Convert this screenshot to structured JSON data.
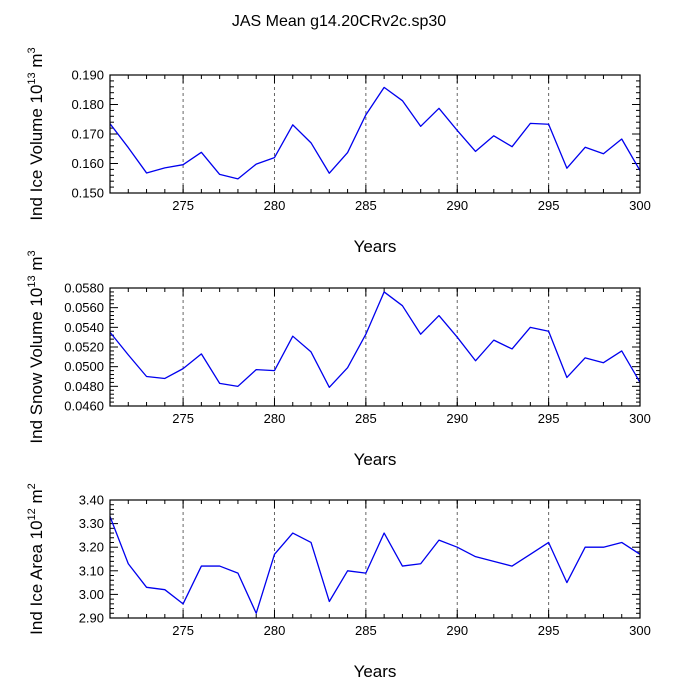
{
  "figure_title": "JAS Mean g14.20CRv2c.sp30",
  "colors": {
    "line": "#0000ee",
    "frame": "#000000",
    "grid": "#666666"
  },
  "chart_data": [
    {
      "type": "line",
      "title": "JAS Mean g14.20CRv2c.sp30",
      "ylabel_main": "Ind Ice Volume 10",
      "ylabel_exp": "13",
      "ylabel_unit": "m",
      "ylabel_unit_exp": "3",
      "xlabel": "Years",
      "xlim": [
        271,
        300
      ],
      "ylim": [
        0.15,
        0.19
      ],
      "xticks": [
        275,
        280,
        285,
        290,
        295,
        300
      ],
      "xtick_labels": [
        "275",
        "280",
        "285",
        "290",
        "295",
        "300"
      ],
      "yticks": [
        0.15,
        0.16,
        0.17,
        0.18,
        0.19
      ],
      "ytick_labels": [
        "0.150",
        "0.160",
        "0.170",
        "0.180",
        "0.190"
      ],
      "grid_x": [
        275,
        280,
        285,
        290,
        295
      ],
      "x": [
        271,
        272,
        273,
        274,
        275,
        276,
        277,
        278,
        279,
        280,
        281,
        282,
        283,
        284,
        285,
        286,
        287,
        288,
        289,
        290,
        291,
        292,
        293,
        294,
        295,
        296,
        297,
        298,
        299,
        300
      ],
      "series": [
        {
          "name": "Ind Ice Volume",
          "values": [
            0.1735,
            0.1654,
            0.1568,
            0.1585,
            0.1596,
            0.1638,
            0.1563,
            0.1548,
            0.1598,
            0.162,
            0.1731,
            0.167,
            0.1567,
            0.1637,
            0.1765,
            0.1858,
            0.1813,
            0.1726,
            0.1787,
            0.1712,
            0.1641,
            0.1694,
            0.1657,
            0.1736,
            0.1733,
            0.1584,
            0.1655,
            0.1633,
            0.1683,
            0.1576
          ]
        }
      ]
    },
    {
      "type": "line",
      "ylabel_main": "Ind Snow Volume 10",
      "ylabel_exp": "13",
      "ylabel_unit": "m",
      "ylabel_unit_exp": "3",
      "xlabel": "Years",
      "xlim": [
        271,
        300
      ],
      "ylim": [
        0.046,
        0.058
      ],
      "xticks": [
        275,
        280,
        285,
        290,
        295,
        300
      ],
      "xtick_labels": [
        "275",
        "280",
        "285",
        "290",
        "295",
        "300"
      ],
      "yticks": [
        0.046,
        0.048,
        0.05,
        0.052,
        0.054,
        0.056,
        0.058
      ],
      "ytick_labels": [
        "0.0460",
        "0.0480",
        "0.0500",
        "0.0520",
        "0.0540",
        "0.0560",
        "0.0580"
      ],
      "grid_x": [
        275,
        280,
        285,
        290,
        295
      ],
      "x": [
        271,
        272,
        273,
        274,
        275,
        276,
        277,
        278,
        279,
        280,
        281,
        282,
        283,
        284,
        285,
        286,
        287,
        288,
        289,
        290,
        291,
        292,
        293,
        294,
        295,
        296,
        297,
        298,
        299,
        300
      ],
      "series": [
        {
          "name": "Ind Snow Volume",
          "values": [
            0.0535,
            0.0512,
            0.049,
            0.0488,
            0.0498,
            0.0513,
            0.0483,
            0.048,
            0.0497,
            0.0496,
            0.0531,
            0.0515,
            0.0479,
            0.0499,
            0.0533,
            0.0576,
            0.0562,
            0.0533,
            0.0552,
            0.053,
            0.0506,
            0.0527,
            0.0518,
            0.054,
            0.0536,
            0.0489,
            0.0509,
            0.0504,
            0.0516,
            0.0484
          ]
        }
      ]
    },
    {
      "type": "line",
      "ylabel_main": "Ind Ice Area 10",
      "ylabel_exp": "12",
      "ylabel_unit": "m",
      "ylabel_unit_exp": "2",
      "xlabel": "Years",
      "xlim": [
        271,
        300
      ],
      "ylim": [
        2.9,
        3.4
      ],
      "xticks": [
        275,
        280,
        285,
        290,
        295,
        300
      ],
      "xtick_labels": [
        "275",
        "280",
        "285",
        "290",
        "295",
        "300"
      ],
      "yticks": [
        2.9,
        3.0,
        3.1,
        3.2,
        3.3,
        3.4
      ],
      "ytick_labels": [
        "2.90",
        "3.00",
        "3.10",
        "3.20",
        "3.30",
        "3.40"
      ],
      "grid_x": [
        275,
        280,
        285,
        290,
        295
      ],
      "x": [
        271,
        272,
        273,
        274,
        275,
        276,
        277,
        278,
        279,
        280,
        281,
        282,
        283,
        284,
        285,
        286,
        287,
        288,
        289,
        290,
        291,
        292,
        293,
        294,
        295,
        296,
        297,
        298,
        299,
        300
      ],
      "series": [
        {
          "name": "Ind Ice Area",
          "values": [
            3.33,
            3.13,
            3.03,
            3.02,
            2.96,
            3.12,
            3.12,
            3.09,
            2.92,
            3.17,
            3.26,
            3.22,
            2.97,
            3.1,
            3.09,
            3.26,
            3.12,
            3.13,
            3.23,
            3.2,
            3.16,
            3.14,
            3.12,
            3.17,
            3.22,
            3.05,
            3.2,
            3.2,
            3.22,
            3.17
          ]
        }
      ]
    }
  ]
}
